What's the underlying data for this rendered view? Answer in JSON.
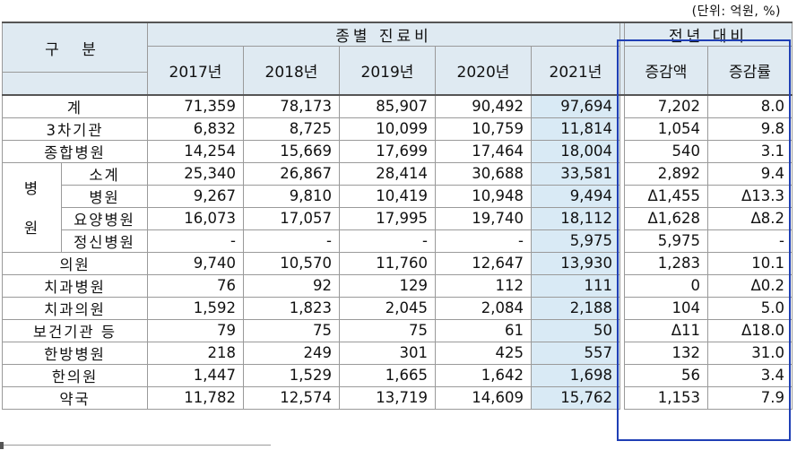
{
  "unit_note": "(단위: 억원, %)",
  "header": {
    "category": "구 분",
    "group_title": "종별 진료비",
    "years": [
      "2017년",
      "2018년",
      "2019년",
      "2020년",
      "2021년"
    ],
    "yoy_title": "전년 대비",
    "yoy_cols": [
      "증감액",
      "증감률"
    ]
  },
  "hospital_group": {
    "top": "병",
    "bottom": "원"
  },
  "rows": [
    {
      "label": "계",
      "values": [
        "71,359",
        "78,173",
        "85,907",
        "90,492",
        "97,694"
      ],
      "amt": "7,202",
      "rate": "8.0"
    },
    {
      "label": "3차기관",
      "values": [
        "6,832",
        "8,725",
        "10,099",
        "10,759",
        "11,814"
      ],
      "amt": "1,054",
      "rate": "9.8"
    },
    {
      "label": "종합병원",
      "values": [
        "14,254",
        "15,669",
        "17,699",
        "17,464",
        "18,004"
      ],
      "amt": "540",
      "rate": "3.1"
    },
    {
      "label": "소계",
      "values": [
        "25,340",
        "26,867",
        "28,414",
        "30,688",
        "33,581"
      ],
      "amt": "2,892",
      "rate": "9.4"
    },
    {
      "label": "병원",
      "values": [
        "9,267",
        "9,810",
        "10,419",
        "10,948",
        "9,494"
      ],
      "amt": "Δ1,455",
      "rate": "Δ13.3"
    },
    {
      "label": "요양병원",
      "values": [
        "16,073",
        "17,057",
        "17,995",
        "19,740",
        "18,112"
      ],
      "amt": "Δ1,628",
      "rate": "Δ8.2"
    },
    {
      "label": "정신병원",
      "values": [
        "-",
        "-",
        "-",
        "-",
        "5,975"
      ],
      "amt": "5,975",
      "rate": "-"
    },
    {
      "label": "의원",
      "values": [
        "9,740",
        "10,570",
        "11,760",
        "12,647",
        "13,930"
      ],
      "amt": "1,283",
      "rate": "10.1"
    },
    {
      "label": "치과병원",
      "values": [
        "76",
        "92",
        "129",
        "112",
        "111"
      ],
      "amt": "0",
      "rate": "Δ0.2"
    },
    {
      "label": "치과의원",
      "values": [
        "1,592",
        "1,823",
        "2,045",
        "2,084",
        "2,188"
      ],
      "amt": "104",
      "rate": "5.0"
    },
    {
      "label": "보건기관 등",
      "values": [
        "79",
        "75",
        "75",
        "61",
        "50"
      ],
      "amt": "Δ11",
      "rate": "Δ18.0"
    },
    {
      "label": "한방병원",
      "values": [
        "218",
        "249",
        "301",
        "425",
        "557"
      ],
      "amt": "132",
      "rate": "31.0"
    },
    {
      "label": "한의원",
      "values": [
        "1,447",
        "1,529",
        "1,665",
        "1,642",
        "1,698"
      ],
      "amt": "56",
      "rate": "3.4"
    },
    {
      "label": "약국",
      "values": [
        "11,782",
        "12,574",
        "13,719",
        "14,609",
        "15,762"
      ],
      "amt": "1,153",
      "rate": "7.9"
    }
  ],
  "colors": {
    "header_bg": "#dfeaf2",
    "highlight_bg": "#d9eaf5",
    "frame": "#1f3fb5"
  }
}
